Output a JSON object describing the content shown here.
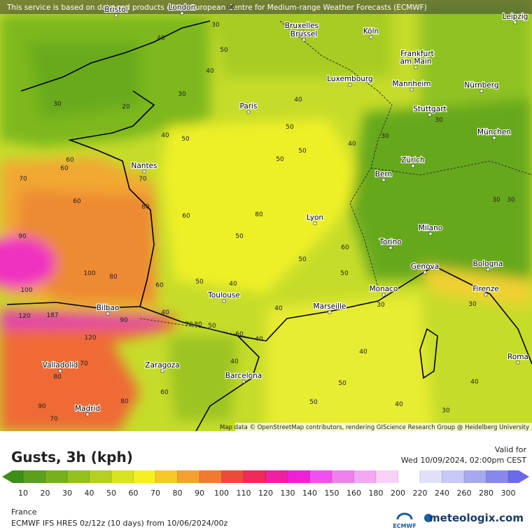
{
  "header": {
    "notice": "This service is based on data and products of the European Centre for Medium-range Weather Forecasts (ECMWF)"
  },
  "map": {
    "cities": [
      "Bristol",
      "London",
      "Bruxelles",
      "Brussel",
      "Köln",
      "Leipzig",
      "Frankfurt",
      "am Main",
      "Luxembourg",
      "Mannheim",
      "Nürnberg",
      "Paris",
      "Stuttgart",
      "München",
      "Nantes",
      "Zürich",
      "Bern",
      "Lyon",
      "Milano",
      "Torino",
      "Genova",
      "Bologna",
      "Monaco",
      "Firenze",
      "Toulouse",
      "Marseille",
      "Bilbao",
      "Zaragoza",
      "Barcelona",
      "Valladolid",
      "Roma",
      "Madrid"
    ],
    "contour_labels": [
      "40",
      "30",
      "40",
      "50",
      "40",
      "30",
      "20",
      "30",
      "40",
      "50",
      "40",
      "50",
      "50",
      "40",
      "50",
      "30",
      "30",
      "60",
      "70",
      "60",
      "60",
      "70",
      "80",
      "60",
      "80",
      "50",
      "90",
      "80",
      "100",
      "60",
      "50",
      "40",
      "50",
      "60",
      "50",
      "30",
      "40",
      "40",
      "100",
      "120",
      "187",
      "90",
      "70",
      "80",
      "60",
      "40",
      "50",
      "120",
      "80",
      "70",
      "90",
      "70",
      "80",
      "60",
      "40",
      "50",
      "40",
      "50",
      "40",
      "30",
      "40",
      "30",
      "30",
      "30"
    ],
    "attribution": "Map data © OpenStreetMap contributors, rendering GIScience Research Group @ Heidelberg University"
  },
  "legend": {
    "title": "Gusts, 3h (kph)",
    "valid_label": "Valid for",
    "valid_time": "Wed 10/09/2024, 02:00pm CEST",
    "scale": {
      "ticks": [
        10,
        20,
        30,
        40,
        50,
        60,
        70,
        80,
        90,
        100,
        110,
        120,
        130,
        140,
        150,
        160,
        180,
        200,
        220,
        240,
        260,
        280,
        300
      ],
      "colors": [
        "#3e8e1a",
        "#5aa01c",
        "#76b01c",
        "#94c01e",
        "#b4d020",
        "#d8e41e",
        "#f5f020",
        "#f8c828",
        "#f5a030",
        "#f27a30",
        "#ee4a3a",
        "#f02a5a",
        "#f020a0",
        "#f020d8",
        "#f050f0",
        "#f080f0",
        "#f4a8f4",
        "#f8d0f8",
        "#ffffff",
        "#e0e0f8",
        "#c8c8f4",
        "#a8a8f0",
        "#8888ec",
        "#6a6ae8"
      ]
    }
  },
  "footer": {
    "region": "France",
    "model": "ECMWF IFS HRES 0z/12z (10 days) from 10/06/2024/00z",
    "ecmwf_logo": "ECMWF",
    "brand": "meteologix.com"
  }
}
